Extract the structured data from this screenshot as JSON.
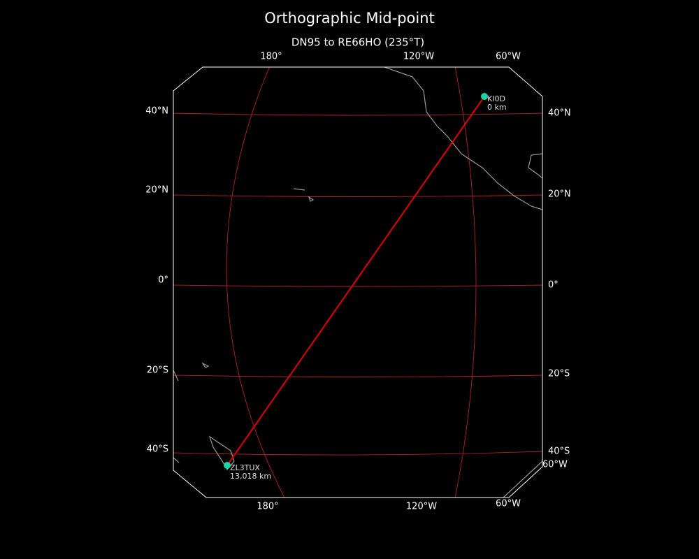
{
  "title": "Orthographic Mid-point",
  "subtitle": "DN95 to RE66HO (235°T)",
  "lon_labels_top": [
    "180°",
    "120°W",
    "60°W"
  ],
  "lon_labels_bottom": [
    "180°",
    "120°W",
    "60°W"
  ],
  "lat_labels_left": [
    "40°N",
    "20°N",
    "0°",
    "20°S",
    "40°S"
  ],
  "lat_labels_right": [
    "40°N",
    "20°N",
    "0°",
    "20°S",
    "40°S",
    "60°W"
  ],
  "stations": [
    {
      "call": "KI0D",
      "distance": "0 km"
    },
    {
      "call": "ZL3TUX",
      "distance": "13,018 km"
    }
  ]
}
